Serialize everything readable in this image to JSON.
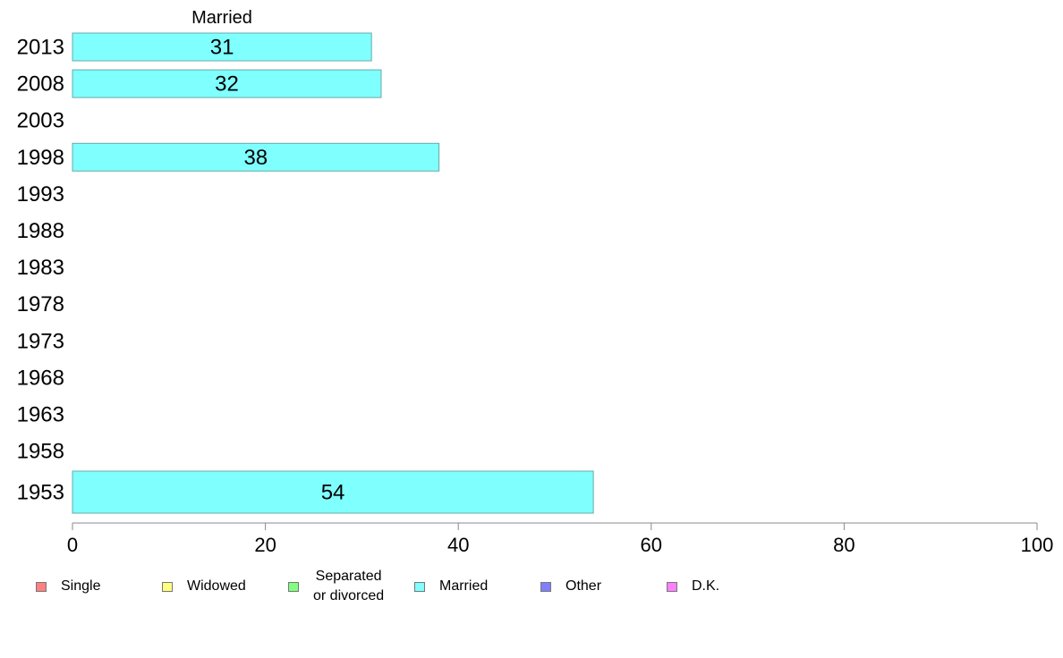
{
  "chart_data": {
    "type": "bar",
    "orientation": "horizontal",
    "title": "Married",
    "categories": [
      "2013",
      "2008",
      "2003",
      "1998",
      "1993",
      "1988",
      "1983",
      "1978",
      "1973",
      "1968",
      "1963",
      "1958",
      "1953"
    ],
    "series": [
      {
        "name": "Married",
        "color": "#80ffff",
        "values": [
          31,
          32,
          null,
          38,
          null,
          null,
          null,
          null,
          null,
          null,
          null,
          null,
          54
        ]
      }
    ],
    "xlim": [
      0,
      100
    ],
    "xticks": [
      "0",
      "20",
      "40",
      "60",
      "80",
      "100"
    ],
    "grid": false,
    "legend_position": "bottom"
  },
  "legend": {
    "items": [
      {
        "label": "Single",
        "color": "#ff8080"
      },
      {
        "label": "Widowed",
        "color": "#ffff80"
      },
      {
        "label": "Separated\n or divorced",
        "color": "#80ff80"
      },
      {
        "label": "Married",
        "color": "#80ffff"
      },
      {
        "label": "Other",
        "color": "#8080ff"
      },
      {
        "label": "D.K.",
        "color": "#ff80ff"
      }
    ]
  }
}
